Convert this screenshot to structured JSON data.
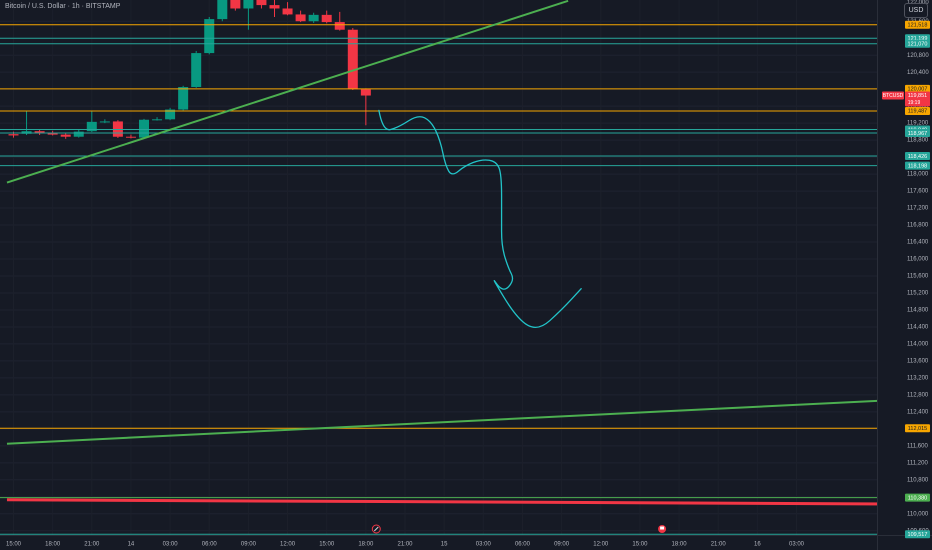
{
  "header": {
    "title": "Bitcoin / U.S. Dollar · 1h · BITSTAMP",
    "currency_button": "USD"
  },
  "colors": {
    "background": "#161a25",
    "up_candle": "#089981",
    "down_candle": "#f23645",
    "orange_level": "#f7a600",
    "teal_level": "#26a69a",
    "green_trendline": "#4caf50",
    "red_line": "#f23645",
    "drawing": "#22c4c9",
    "axis_text": "#b2b5be"
  },
  "chart_data": {
    "type": "candlestick",
    "symbol": "BTCUSD",
    "interval": "1h",
    "exchange": "BITSTAMP",
    "ylim": [
      109500,
      122100
    ],
    "y_ticks": [
      "121,600",
      "121,200",
      "120,800",
      "120,400",
      "120,000",
      "119,600",
      "119,200",
      "118,800",
      "118,400",
      "118,000",
      "117,600",
      "117,200",
      "116,800",
      "116,400",
      "116,000",
      "115,600",
      "115,200",
      "114,800",
      "114,400",
      "114,000",
      "113,600",
      "113,200",
      "112,800",
      "112,400",
      "112,000",
      "111,600",
      "111,200",
      "110,800",
      "110,400",
      "110,000",
      "109,600"
    ],
    "top_clipped_tick": "122,000",
    "x_ticks": [
      {
        "label": "15:00",
        "slot": 0
      },
      {
        "label": "18:00",
        "slot": 3
      },
      {
        "label": "21:00",
        "slot": 6
      },
      {
        "label": "14",
        "slot": 9
      },
      {
        "label": "03:00",
        "slot": 12
      },
      {
        "label": "06:00",
        "slot": 15
      },
      {
        "label": "09:00",
        "slot": 18
      },
      {
        "label": "12:00",
        "slot": 21
      },
      {
        "label": "15:00",
        "slot": 24
      },
      {
        "label": "18:00",
        "slot": 27
      },
      {
        "label": "21:00",
        "slot": 30
      },
      {
        "label": "15",
        "slot": 33
      },
      {
        "label": "03:00",
        "slot": 36
      },
      {
        "label": "06:00",
        "slot": 39
      },
      {
        "label": "09:00",
        "slot": 42
      },
      {
        "label": "12:00",
        "slot": 45
      },
      {
        "label": "15:00",
        "slot": 48
      },
      {
        "label": "18:00",
        "slot": 51
      },
      {
        "label": "21:00",
        "slot": 54
      },
      {
        "label": "16",
        "slot": 57
      },
      {
        "label": "03:00",
        "slot": 60
      }
    ],
    "candles": [
      {
        "o": 118940,
        "h": 119000,
        "l": 118860,
        "c": 118910
      },
      {
        "o": 118950,
        "h": 119480,
        "l": 118920,
        "c": 119010
      },
      {
        "o": 119010,
        "h": 119060,
        "l": 118920,
        "c": 118960
      },
      {
        "o": 118960,
        "h": 119020,
        "l": 118910,
        "c": 118930
      },
      {
        "o": 118930,
        "h": 118970,
        "l": 118830,
        "c": 118880
      },
      {
        "o": 118880,
        "h": 119040,
        "l": 118860,
        "c": 119000
      },
      {
        "o": 119010,
        "h": 119480,
        "l": 118990,
        "c": 119230
      },
      {
        "o": 119230,
        "h": 119290,
        "l": 119200,
        "c": 119240
      },
      {
        "o": 119240,
        "h": 119270,
        "l": 118850,
        "c": 118880
      },
      {
        "o": 118880,
        "h": 118930,
        "l": 118840,
        "c": 118860
      },
      {
        "o": 118860,
        "h": 119300,
        "l": 118850,
        "c": 119280
      },
      {
        "o": 119280,
        "h": 119340,
        "l": 119260,
        "c": 119290
      },
      {
        "o": 119290,
        "h": 119560,
        "l": 119270,
        "c": 119520
      },
      {
        "o": 119520,
        "h": 120080,
        "l": 119500,
        "c": 120050
      },
      {
        "o": 120050,
        "h": 120900,
        "l": 120030,
        "c": 120850
      },
      {
        "o": 120850,
        "h": 121700,
        "l": 120820,
        "c": 121650
      },
      {
        "o": 121650,
        "h": 122200,
        "l": 121600,
        "c": 122100
      },
      {
        "o": 122100,
        "h": 122150,
        "l": 121850,
        "c": 121900
      },
      {
        "o": 121900,
        "h": 122200,
        "l": 121400,
        "c": 122100
      },
      {
        "o": 122100,
        "h": 122150,
        "l": 121900,
        "c": 121980
      },
      {
        "o": 121980,
        "h": 122150,
        "l": 121700,
        "c": 121900
      },
      {
        "o": 121900,
        "h": 122050,
        "l": 121740,
        "c": 121760
      },
      {
        "o": 121760,
        "h": 121850,
        "l": 121580,
        "c": 121600
      },
      {
        "o": 121600,
        "h": 121800,
        "l": 121560,
        "c": 121750
      },
      {
        "o": 121750,
        "h": 121850,
        "l": 121550,
        "c": 121580
      },
      {
        "o": 121580,
        "h": 121820,
        "l": 121380,
        "c": 121400
      },
      {
        "o": 121400,
        "h": 121440,
        "l": 119980,
        "c": 120000
      },
      {
        "o": 120000,
        "h": 120020,
        "l": 119150,
        "c": 119850
      }
    ],
    "horizontal_levels": [
      {
        "price": 121518,
        "label": "121,518",
        "style": "orange"
      },
      {
        "price": 121199,
        "label": "121,199",
        "style": "teal"
      },
      {
        "price": 121070,
        "label": "121,070",
        "style": "teal"
      },
      {
        "price": 120007,
        "label": "120,007",
        "style": "orange"
      },
      {
        "price": 119487,
        "label": "119,487",
        "style": "orange"
      },
      {
        "price": 119049,
        "label": "119,049",
        "style": "teal"
      },
      {
        "price": 118967,
        "label": "118,967",
        "style": "teal"
      },
      {
        "price": 118426,
        "label": "118,426",
        "style": "teal"
      },
      {
        "price": 118198,
        "label": "118,198",
        "style": "teal"
      },
      {
        "price": 112015,
        "label": "112,015",
        "style": "orange"
      },
      {
        "price": 110380,
        "label": "110,380",
        "style": "green"
      },
      {
        "price": 109517,
        "label": "109,517",
        "style": "teal"
      }
    ],
    "current_price": {
      "symbol": "BTCUSD",
      "price": "119,851",
      "countdown": "19:19"
    },
    "trendlines": [
      {
        "from": [
          -0.5,
          117800
        ],
        "to": [
          42.5,
          122080
        ],
        "style": "green"
      },
      {
        "from": [
          -0.5,
          111650
        ],
        "to": [
          67.5,
          112680
        ],
        "style": "green"
      },
      {
        "from": [
          -0.5,
          110330
        ],
        "to": [
          67.5,
          110230
        ],
        "style": "red"
      }
    ],
    "drawing_path": [
      [
        28.0,
        119500
      ],
      [
        28.3,
        119000
      ],
      [
        29.5,
        119100
      ],
      [
        31.0,
        119400
      ],
      [
        32.0,
        119250
      ],
      [
        32.7,
        118800
      ],
      [
        33.1,
        118200
      ],
      [
        33.6,
        117940
      ],
      [
        34.6,
        118200
      ],
      [
        35.9,
        118350
      ],
      [
        37.0,
        118300
      ],
      [
        37.4,
        118000
      ],
      [
        37.4,
        117000
      ],
      [
        37.4,
        116300
      ],
      [
        37.9,
        115800
      ],
      [
        38.4,
        115500
      ],
      [
        37.5,
        115200
      ],
      [
        36.5,
        115650
      ],
      [
        38.6,
        114580
      ],
      [
        40.2,
        114300
      ],
      [
        42.0,
        114800
      ],
      [
        43.5,
        115300
      ]
    ]
  }
}
